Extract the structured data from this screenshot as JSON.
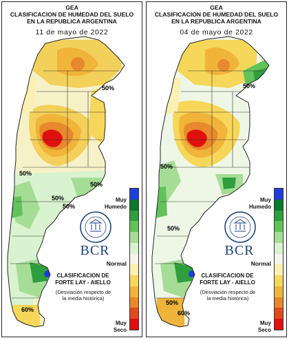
{
  "panels": [
    {
      "org": "GEA",
      "title_line1": "CLASIFICACION DE HUMEDAD DEL SUELO",
      "title_line2": "EN LA REPUBLICA ARGENTINA",
      "date": "11 de mayo de 2022",
      "contour_labels": [
        "50%",
        "50%",
        "50%",
        "50%",
        "50%",
        "60%"
      ]
    },
    {
      "org": "GEA",
      "title_line1": "CLASIFICACION DE HUMEDAD DEL SUELO",
      "title_line2": "EN LA REPUBLICA ARGENTINA",
      "date": "04 de mayo de 2022",
      "contour_labels": [
        "50%",
        "50%",
        "50%",
        "50%",
        "60%"
      ]
    }
  ],
  "legend": {
    "top_label": "Muy\nHumedo",
    "middle_label": "Normal",
    "bottom_label": "Muy\nSeco",
    "colors": [
      "#1e3fd8",
      "#0a7a2c",
      "#2f9e3e",
      "#62c25a",
      "#a6dd96",
      "#d9f2cf",
      "#f4f4ec",
      "#fbefb2",
      "#f6d75a",
      "#f0b43a",
      "#e7892c",
      "#e04a1f",
      "#e01010"
    ]
  },
  "method_title": "CLASIFICACION DE\nFORTE LAY - AIELLO",
  "method_note": "(Desviación respecto de\nla media histórica)",
  "logo_text": "BCR",
  "seal_text": "BOLSA DE COMERCIO DE ROSARIO"
}
